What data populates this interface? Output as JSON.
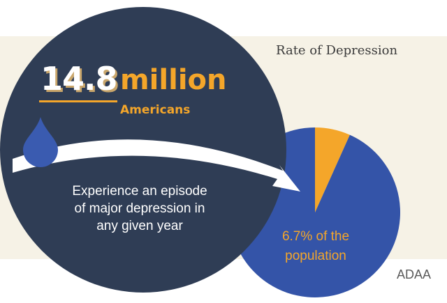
{
  "title": "Rate of Depression",
  "headline": {
    "number": "14.8",
    "unit": "million",
    "subject": "Americans"
  },
  "description_lines": [
    "Experience an episode",
    "of major depression in",
    "any given year"
  ],
  "pie_label_lines": [
    "6.7% of the",
    "population"
  ],
  "source": "ADAA",
  "colors": {
    "background_panel": "#f6f2e6",
    "navy": "#2f3d55",
    "pie_blue": "#3454a8",
    "accent_orange": "#f4a62a",
    "drop_blue": "#3a5bb0"
  },
  "chart_data": {
    "type": "pie",
    "title": "Rate of Depression",
    "slices": [
      {
        "label": "6.7% of the population",
        "value": 6.7,
        "color": "#f4a62a"
      },
      {
        "label": "",
        "value": 93.3,
        "color": "#3454a8"
      }
    ]
  }
}
